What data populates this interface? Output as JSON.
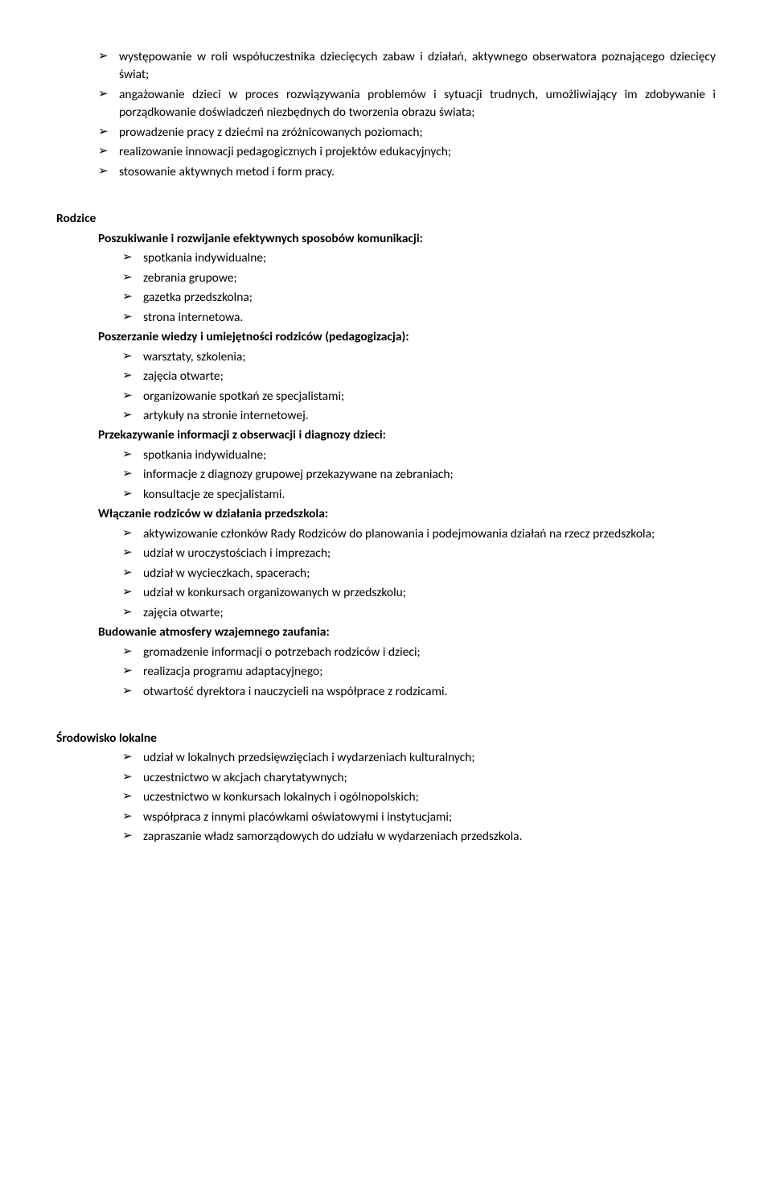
{
  "intro_items": [
    "występowanie w roli współuczestnika dziecięcych zabaw i działań, aktywnego obserwatora poznającego dziecięcy świat;",
    "angażowanie dzieci w proces rozwiązywania problemów i sytuacji trudnych, umożliwiający im zdobywanie i porządkowanie doświadczeń niezbędnych do tworzenia obrazu świata;",
    "prowadzenie pracy z dziećmi na zróżnicowanych poziomach;",
    "realizowanie innowacji pedagogicznych i projektów edukacyjnych;",
    "stosowanie aktywnych metod i form pracy."
  ],
  "rodzice": {
    "title": "Rodzice",
    "groups": [
      {
        "heading": "Poszukiwanie i rozwijanie efektywnych sposobów komunikacji:",
        "items": [
          "spotkania indywidualne;",
          "zebrania grupowe;",
          "gazetka przedszkolna;",
          "strona internetowa."
        ]
      },
      {
        "heading": "Poszerzanie wiedzy i umiejętności rodziców (pedagogizacja):",
        "items": [
          "warsztaty, szkolenia;",
          "zajęcia otwarte;",
          "organizowanie spotkań ze specjalistami;",
          "artykuły na stronie internetowej."
        ]
      },
      {
        "heading": "Przekazywanie informacji z obserwacji i diagnozy dzieci:",
        "items": [
          "spotkania indywidualne;",
          "informacje z diagnozy grupowej przekazywane na zebraniach;",
          "konsultacje ze specjalistami."
        ]
      },
      {
        "heading": "Włączanie rodziców w działania przedszkola:",
        "items": [
          "aktywizowanie członków Rady Rodziców do planowania i podejmowania działań na rzecz przedszkola;",
          "udział w uroczystościach i imprezach;",
          "udział w wycieczkach, spacerach;",
          "udział w konkursach organizowanych w przedszkolu;",
          "zajęcia otwarte;"
        ]
      },
      {
        "heading": "Budowanie atmosfery wzajemnego zaufania:",
        "items": [
          "gromadzenie informacji o potrzebach rodziców i dzieci;",
          "realizacja programu adaptacyjnego;",
          "otwartość dyrektora i nauczycieli na współprace z rodzicami."
        ]
      }
    ]
  },
  "srodowisko": {
    "title": "Środowisko lokalne",
    "items": [
      "udział w lokalnych przedsięwzięciach i wydarzeniach kulturalnych;",
      "uczestnictwo w akcjach charytatywnych;",
      "uczestnictwo w konkursach lokalnych i ogólnopolskich;",
      "współpraca z innymi placówkami oświatowymi i instytucjami;",
      "zapraszanie władz samorządowych do udziału w wydarzeniach przedszkola."
    ]
  }
}
